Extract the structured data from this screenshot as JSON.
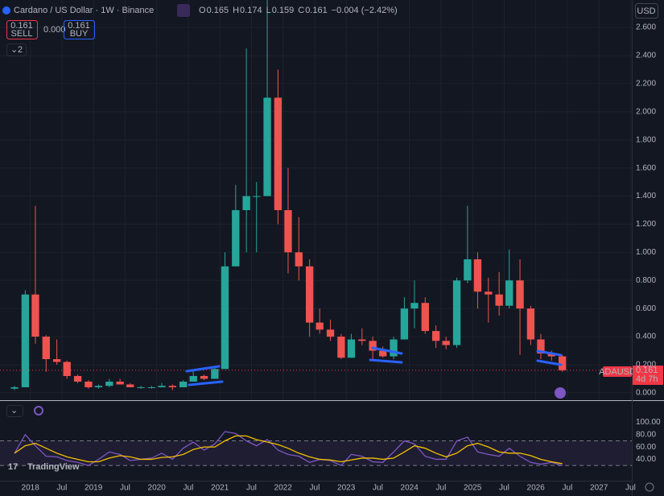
{
  "header": {
    "symbol": "Cardano / US Dollar · 1W · Binance",
    "ohlc": [
      {
        "label": "O",
        "value": "0.165"
      },
      {
        "label": "H",
        "value": "0.174"
      },
      {
        "label": "L",
        "value": "0.159"
      },
      {
        "label": "C",
        "value": "0.161"
      }
    ],
    "change": "−0.004 (−2.42%)"
  },
  "trade": {
    "sell_price": "0.161",
    "sell": "SELL",
    "spread": "0.000",
    "buy_price": "0.161",
    "buy": "BUY"
  },
  "indicator_count": "2",
  "currency": "USD",
  "price_tag": {
    "symbol": "ADAUSD",
    "price": "0.161",
    "countdown": "4d 7h"
  },
  "logo": "TradingView",
  "chart_data": [
    {
      "type": "candlestick",
      "x": [
        2017.75,
        2017.92,
        2018.08,
        2018.25,
        2018.42,
        2018.58,
        2018.75,
        2018.92,
        2019.08,
        2019.25,
        2019.42,
        2019.58,
        2019.75,
        2019.92,
        2020.08,
        2020.25,
        2020.42,
        2020.58,
        2020.75,
        2020.92,
        2021.08,
        2021.25,
        2021.42,
        2021.58,
        2021.75,
        2021.92,
        2022.08,
        2022.25,
        2022.42,
        2022.58,
        2022.75,
        2022.92,
        2023.08,
        2023.25,
        2023.42,
        2023.58,
        2023.75,
        2023.92,
        2024.08,
        2024.25,
        2024.42,
        2024.58,
        2024.75,
        2024.92,
        2025.08,
        2025.25,
        2025.42,
        2025.58,
        2025.75,
        2025.92,
        2026.08,
        2026.25,
        2026.42
      ],
      "open": [
        0.03,
        0.04,
        0.7,
        0.4,
        0.24,
        0.22,
        0.12,
        0.08,
        0.04,
        0.05,
        0.08,
        0.06,
        0.04,
        0.04,
        0.04,
        0.05,
        0.04,
        0.08,
        0.12,
        0.1,
        0.17,
        0.9,
        1.3,
        1.4,
        1.4,
        2.1,
        1.3,
        1.0,
        0.9,
        0.5,
        0.45,
        0.4,
        0.25,
        0.38,
        0.37,
        0.3,
        0.26,
        0.38,
        0.6,
        0.64,
        0.44,
        0.37,
        0.34,
        0.8,
        0.95,
        0.72,
        0.7,
        0.62,
        0.8,
        0.6,
        0.38,
        0.28,
        0.26
      ],
      "high": [
        0.05,
        0.73,
        1.33,
        0.41,
        0.38,
        0.23,
        0.13,
        0.09,
        0.06,
        0.1,
        0.1,
        0.07,
        0.05,
        0.05,
        0.07,
        0.06,
        0.09,
        0.16,
        0.13,
        0.18,
        1.0,
        1.48,
        2.45,
        1.5,
        2.9,
        2.3,
        1.6,
        1.25,
        0.95,
        0.6,
        0.52,
        0.42,
        0.42,
        0.46,
        0.4,
        0.33,
        0.4,
        0.68,
        0.8,
        0.68,
        0.48,
        0.4,
        0.82,
        1.33,
        1.0,
        0.82,
        0.86,
        1.02,
        0.95,
        0.62,
        0.42,
        0.3,
        0.27
      ],
      "low": [
        0.02,
        0.04,
        0.35,
        0.15,
        0.2,
        0.1,
        0.07,
        0.03,
        0.03,
        0.04,
        0.06,
        0.04,
        0.03,
        0.03,
        0.04,
        0.02,
        0.04,
        0.08,
        0.09,
        0.1,
        0.17,
        0.9,
        1.0,
        1.0,
        1.4,
        1.2,
        0.85,
        0.8,
        0.4,
        0.42,
        0.37,
        0.24,
        0.25,
        0.34,
        0.24,
        0.25,
        0.24,
        0.38,
        0.46,
        0.42,
        0.32,
        0.31,
        0.32,
        0.78,
        0.6,
        0.5,
        0.55,
        0.6,
        0.27,
        0.34,
        0.24,
        0.23,
        0.15
      ],
      "close": [
        0.04,
        0.7,
        0.4,
        0.24,
        0.22,
        0.12,
        0.08,
        0.04,
        0.05,
        0.08,
        0.06,
        0.04,
        0.04,
        0.04,
        0.05,
        0.04,
        0.08,
        0.12,
        0.1,
        0.17,
        0.9,
        1.3,
        1.4,
        1.4,
        2.1,
        1.3,
        1.0,
        0.9,
        0.5,
        0.45,
        0.4,
        0.25,
        0.38,
        0.37,
        0.3,
        0.26,
        0.38,
        0.6,
        0.64,
        0.44,
        0.37,
        0.34,
        0.8,
        0.95,
        0.72,
        0.7,
        0.62,
        0.8,
        0.6,
        0.38,
        0.28,
        0.26,
        0.161
      ],
      "up_color": "#26a69a",
      "down_color": "#ef5350",
      "xlim": [
        2017.52,
        2027.52
      ],
      "xticks": [
        {
          "value": 2018,
          "label": "2018"
        },
        {
          "value": 2018.5,
          "label": "Jul"
        },
        {
          "value": 2019,
          "label": "2019"
        },
        {
          "value": 2019.5,
          "label": "Jul"
        },
        {
          "value": 2020,
          "label": "2020"
        },
        {
          "value": 2020.5,
          "label": "Jul"
        },
        {
          "value": 2021,
          "label": "2021"
        },
        {
          "value": 2021.5,
          "label": "Jul"
        },
        {
          "value": 2022,
          "label": "2022"
        },
        {
          "value": 2022.5,
          "label": "Jul"
        },
        {
          "value": 2023,
          "label": "2023"
        },
        {
          "value": 2023.5,
          "label": "Jul"
        },
        {
          "value": 2024,
          "label": "2024"
        },
        {
          "value": 2024.5,
          "label": "Jul"
        },
        {
          "value": 2025,
          "label": "2025"
        },
        {
          "value": 2025.5,
          "label": "Jul"
        },
        {
          "value": 2026,
          "label": "2026"
        },
        {
          "value": 2026.5,
          "label": "Jul"
        },
        {
          "value": 2027,
          "label": "2027"
        },
        {
          "value": 2027.5,
          "label": "Jul"
        }
      ],
      "ylim": [
        -0.052,
        2.795
      ],
      "yticks": [
        {
          "value": 0,
          "label": "0.000"
        },
        {
          "value": 0.2,
          "label": "0.200"
        },
        {
          "value": 0.4,
          "label": "0.400"
        },
        {
          "value": 0.6,
          "label": "0.600"
        },
        {
          "value": 0.8,
          "label": "0.800"
        },
        {
          "value": 1,
          "label": "1.000"
        },
        {
          "value": 1.2,
          "label": "1.200"
        },
        {
          "value": 1.4,
          "label": "1.400"
        },
        {
          "value": 1.6,
          "label": "1.600"
        },
        {
          "value": 1.8,
          "label": "1.800"
        },
        {
          "value": 2,
          "label": "2.000"
        },
        {
          "value": 2.2,
          "label": "2.200"
        },
        {
          "value": 2.4,
          "label": "2.400"
        },
        {
          "value": 2.6,
          "label": "2.600"
        }
      ],
      "grid": true
    },
    {
      "type": "line",
      "x": [
        2017.75,
        2017.92,
        2018.08,
        2018.25,
        2018.42,
        2018.58,
        2018.75,
        2018.92,
        2019.08,
        2019.25,
        2019.42,
        2019.58,
        2019.75,
        2019.92,
        2020.08,
        2020.25,
        2020.42,
        2020.58,
        2020.75,
        2020.92,
        2021.08,
        2021.25,
        2021.42,
        2021.58,
        2021.75,
        2021.92,
        2022.08,
        2022.25,
        2022.42,
        2022.58,
        2022.75,
        2022.92,
        2023.08,
        2023.25,
        2023.42,
        2023.58,
        2023.75,
        2023.92,
        2024.08,
        2024.25,
        2024.42,
        2024.58,
        2024.75,
        2024.92,
        2025.08,
        2025.25,
        2025.42,
        2025.58,
        2025.75,
        2025.92,
        2026.08,
        2026.25,
        2026.42
      ],
      "series": [
        {
          "color": "#7e57c2",
          "values": [
            50,
            80,
            62,
            45,
            44,
            38,
            35,
            30,
            40,
            52,
            48,
            38,
            40,
            42,
            50,
            40,
            58,
            68,
            55,
            65,
            85,
            82,
            70,
            62,
            72,
            55,
            48,
            45,
            35,
            40,
            38,
            30,
            48,
            45,
            36,
            35,
            52,
            70,
            65,
            45,
            40,
            40,
            70,
            76,
            52,
            48,
            45,
            58,
            45,
            35,
            32,
            35,
            30
          ]
        },
        {
          "color": "#f5c000",
          "values": [
            50,
            62,
            66,
            58,
            50,
            44,
            40,
            36,
            36,
            42,
            46,
            44,
            40,
            40,
            43,
            44,
            48,
            56,
            60,
            60,
            70,
            78,
            78,
            72,
            68,
            64,
            58,
            50,
            44,
            40,
            39,
            36,
            39,
            42,
            42,
            40,
            42,
            52,
            62,
            58,
            50,
            44,
            50,
            62,
            66,
            60,
            52,
            50,
            50,
            46,
            40,
            36,
            33
          ]
        }
      ],
      "xlim": [
        2017.52,
        2027.52
      ],
      "ylim": [
        5.3,
        134.7
      ],
      "yticks": [
        {
          "value": 40,
          "label": "40.00"
        },
        {
          "value": 60,
          "label": "60.00"
        },
        {
          "value": 80,
          "label": "80.00"
        },
        {
          "value": 100,
          "label": "100.00"
        }
      ],
      "band": [
        30,
        70
      ]
    }
  ]
}
